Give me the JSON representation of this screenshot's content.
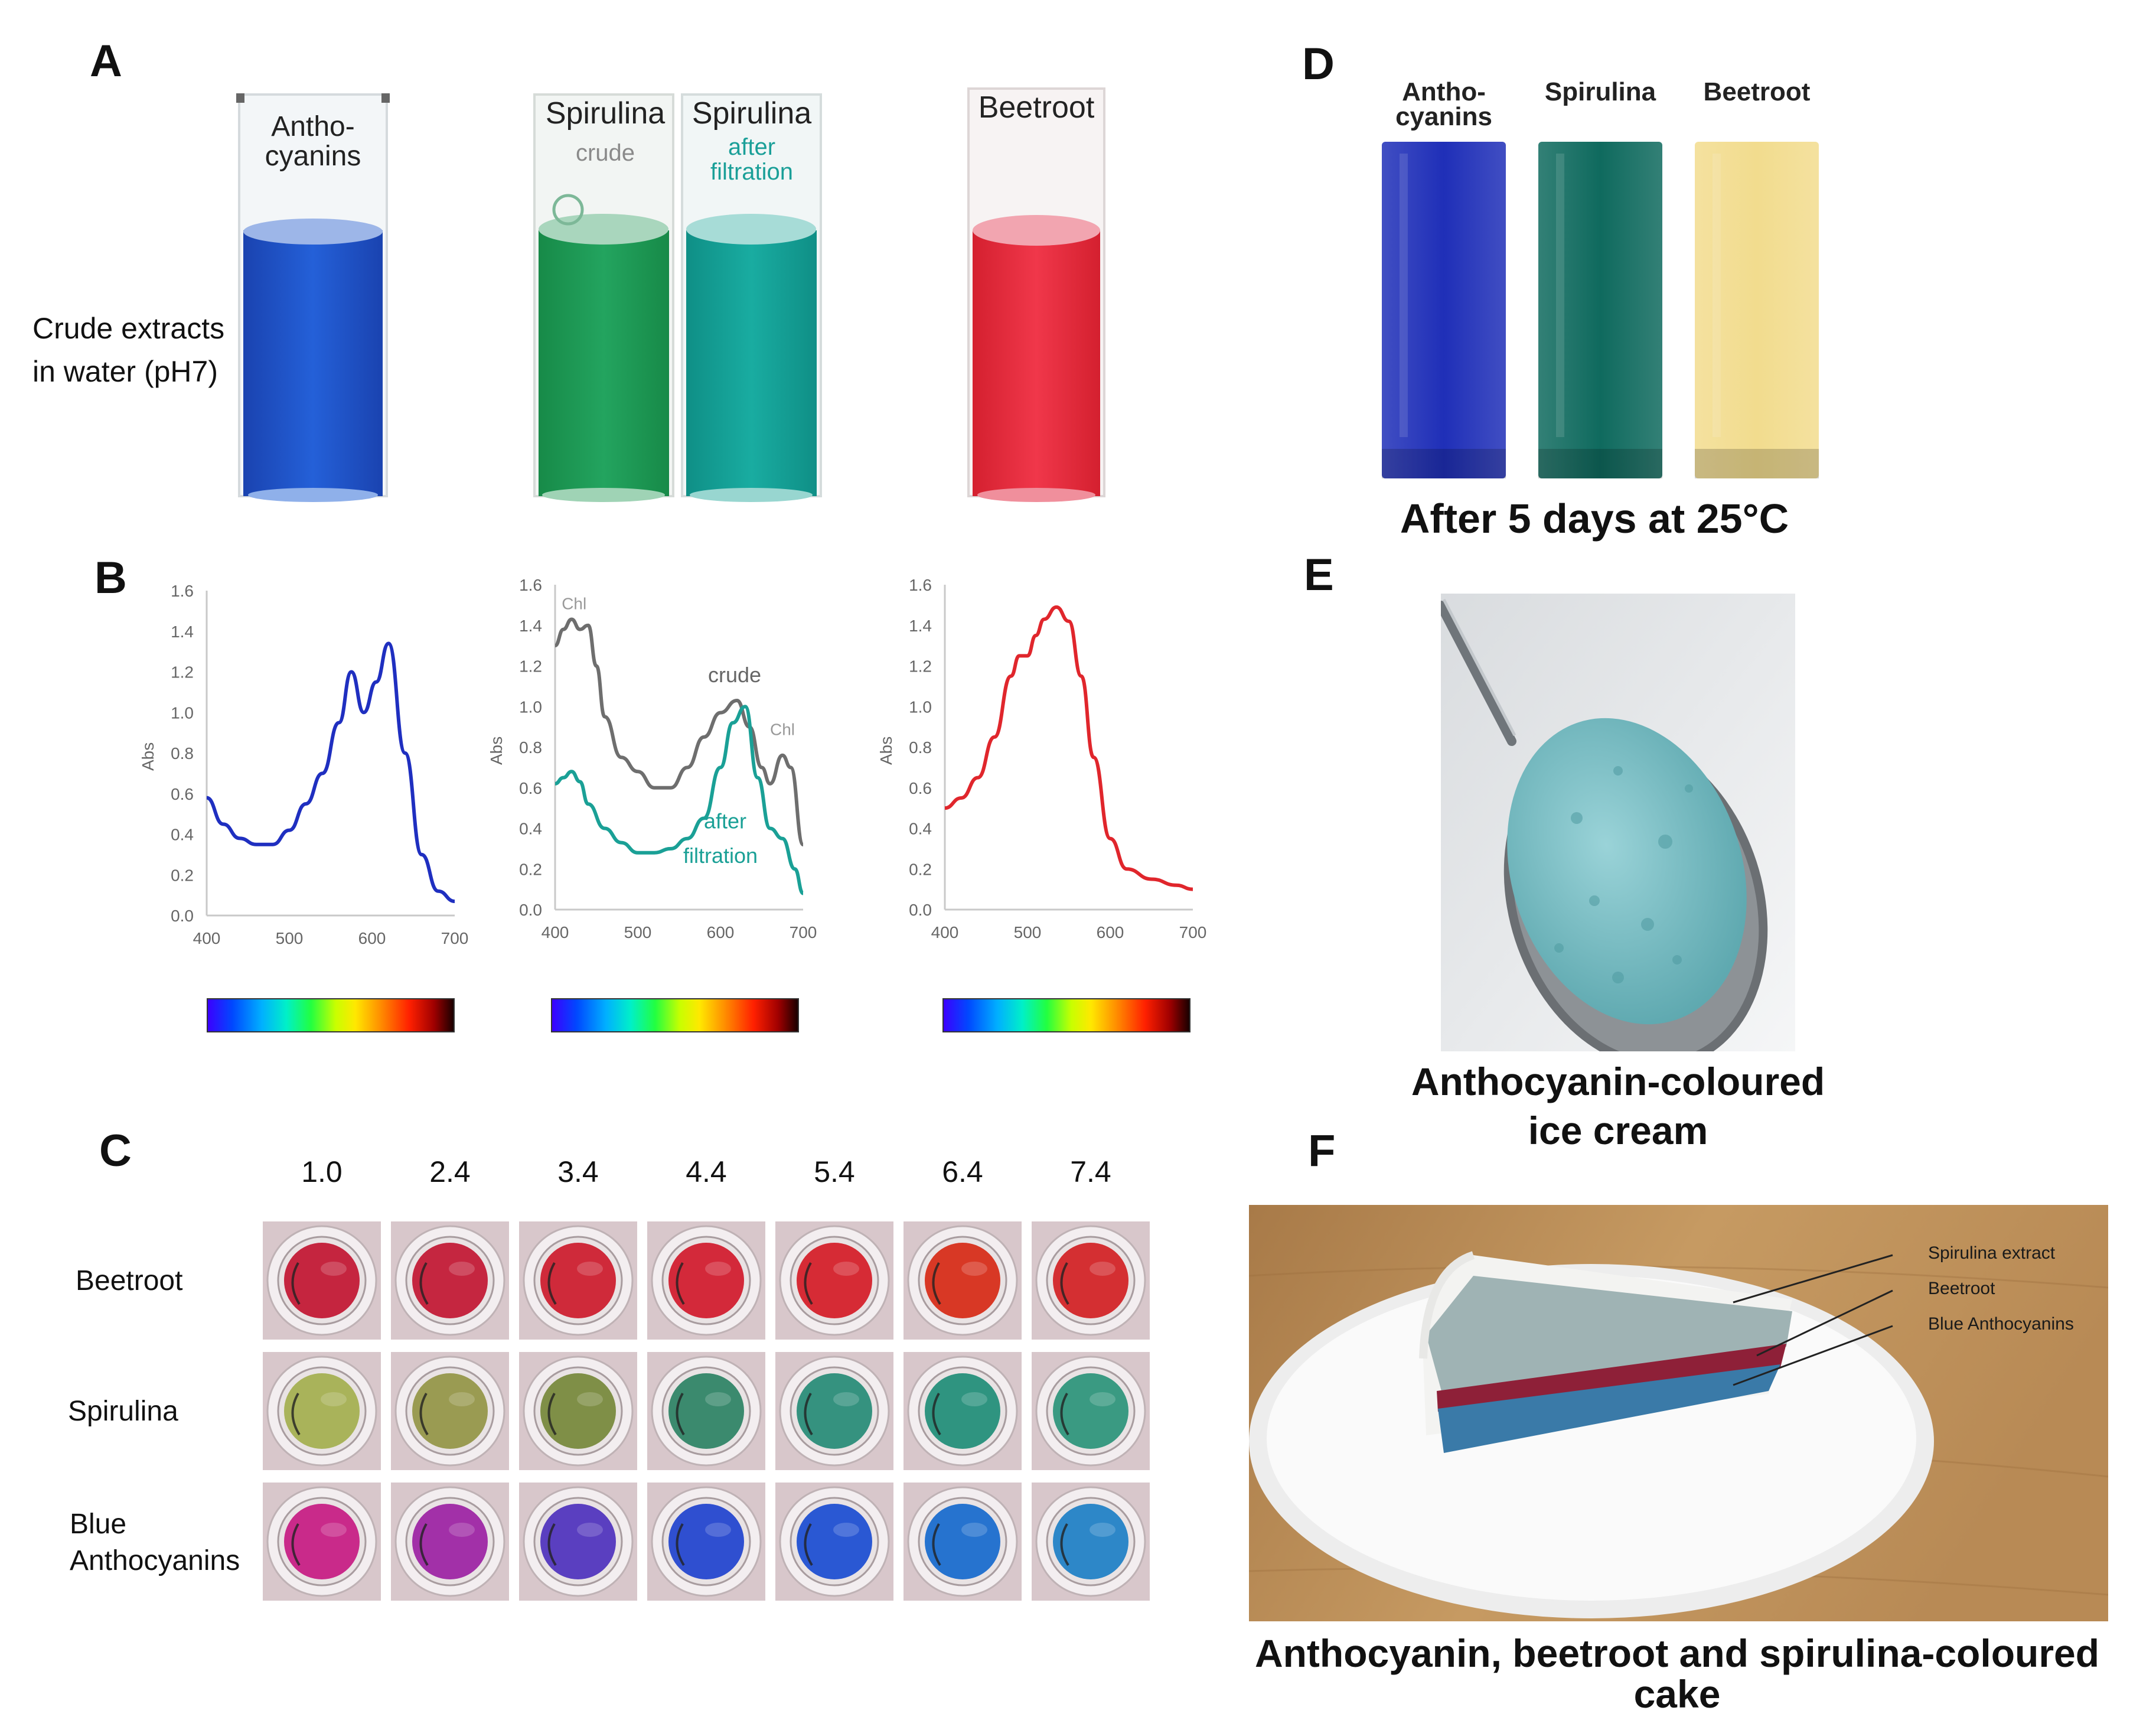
{
  "panels": {
    "A": {
      "label": "A",
      "side_text": [
        "Crude extracts",
        "in water (pH7)"
      ],
      "anthocyanins": [
        "Antho-",
        "cyanins"
      ],
      "spirulina_crude": {
        "title": "Spirulina",
        "sub": "crude"
      },
      "spirulina_filtered": {
        "title": "Spirulina",
        "sub": [
          "after",
          "filtration"
        ]
      },
      "beetroot": "Beetroot",
      "colors": {
        "anthocyanins": "#1d4fc8",
        "spirulina_crude": "#1e9a55",
        "spirulina_filtered": "#13a49a",
        "beetroot": "#e8283d"
      }
    },
    "B": {
      "label": "B",
      "ylabel": "Abs",
      "yticks": [
        "1.6",
        "1.4",
        "1.2",
        "1.0",
        "0.8",
        "0.6",
        "0.4",
        "0.2",
        "0.0"
      ],
      "xticks": [
        "400",
        "500",
        "600",
        "700"
      ],
      "spirulina_annotations": {
        "chl_left": "Chl",
        "chl_right": "Chl",
        "crude": "crude",
        "after": [
          "after",
          "filtration"
        ]
      }
    },
    "C": {
      "label": "C",
      "ph_values": [
        "1.0",
        "2.4",
        "3.4",
        "4.4",
        "5.4",
        "6.4",
        "7.4"
      ],
      "rows": [
        {
          "label": [
            "Beetroot"
          ],
          "colors": [
            "#c5253f",
            "#c52640",
            "#cf2a3a",
            "#d3293a",
            "#d62b35",
            "#d83825",
            "#d42f32"
          ]
        },
        {
          "label": [
            "Spirulina"
          ],
          "colors": [
            "#a9b35a",
            "#9a9b52",
            "#7f8f47",
            "#3b8a6e",
            "#35927f",
            "#2f9480",
            "#3a9a82"
          ]
        },
        {
          "label": [
            "Blue",
            "Anthocyanins"
          ],
          "colors": [
            "#c92a8a",
            "#a230a8",
            "#5a3fc0",
            "#2f4fd0",
            "#2a58d3",
            "#2673cf",
            "#2d87c8"
          ]
        }
      ]
    },
    "D": {
      "label": "D",
      "bottles": [
        {
          "label": [
            "Antho-",
            "cyanins"
          ],
          "color": "#1f2fb8"
        },
        {
          "label": [
            "Spirulina"
          ],
          "color": "#0f6a5e"
        },
        {
          "label": [
            "Beetroot"
          ],
          "color": "#f2dc8e"
        }
      ],
      "caption": "After 5 days at 25°C"
    },
    "E": {
      "label": "E",
      "caption": [
        "Anthocyanin-coloured",
        "ice cream"
      ],
      "icecream_color": "#7cc3c9"
    },
    "F": {
      "label": "F",
      "annotations": [
        "Spirulina extract",
        "Beetroot",
        "Blue Anthocyanins"
      ],
      "caption": [
        "Anthocyanin, beetroot and spirulina-coloured",
        "cake"
      ],
      "layer_colors": {
        "spirulina": "#9fb3b4",
        "beetroot": "#8e2038",
        "anthocyanins": "#3a7aa8"
      }
    }
  },
  "chart_data": [
    {
      "type": "line",
      "title": "",
      "xlabel": "",
      "ylabel": "Abs",
      "xlim": [
        400,
        700
      ],
      "ylim": [
        0,
        1.6
      ],
      "series": [
        {
          "color": "#1f2fc0",
          "x": [
            400,
            420,
            440,
            460,
            480,
            500,
            520,
            540,
            560,
            575,
            590,
            605,
            620,
            640,
            660,
            680,
            700
          ],
          "y": [
            0.58,
            0.45,
            0.38,
            0.35,
            0.35,
            0.42,
            0.55,
            0.7,
            0.95,
            1.2,
            1.0,
            1.15,
            1.34,
            0.8,
            0.3,
            0.12,
            0.07
          ]
        }
      ]
    },
    {
      "type": "line",
      "title": "",
      "xlabel": "",
      "ylabel": "Abs",
      "xlim": [
        400,
        700
      ],
      "ylim": [
        0,
        1.6
      ],
      "series": [
        {
          "name": "crude",
          "color": "#6e6e6e",
          "x": [
            400,
            410,
            420,
            430,
            440,
            450,
            460,
            480,
            500,
            520,
            540,
            560,
            580,
            600,
            620,
            635,
            650,
            660,
            675,
            685,
            700
          ],
          "y": [
            1.3,
            1.38,
            1.43,
            1.38,
            1.4,
            1.2,
            0.95,
            0.75,
            0.68,
            0.6,
            0.6,
            0.7,
            0.85,
            0.97,
            1.03,
            0.9,
            0.7,
            0.62,
            0.76,
            0.7,
            0.32
          ]
        },
        {
          "name": "after filtration",
          "color": "#1aa096",
          "x": [
            400,
            410,
            420,
            430,
            440,
            460,
            480,
            500,
            520,
            540,
            560,
            580,
            600,
            615,
            630,
            645,
            660,
            675,
            690,
            700
          ],
          "y": [
            0.62,
            0.65,
            0.68,
            0.63,
            0.52,
            0.4,
            0.33,
            0.28,
            0.28,
            0.3,
            0.35,
            0.45,
            0.7,
            0.92,
            1.0,
            0.65,
            0.4,
            0.35,
            0.2,
            0.08
          ]
        }
      ]
    },
    {
      "type": "line",
      "title": "",
      "xlabel": "",
      "ylabel": "Abs",
      "xlim": [
        400,
        700
      ],
      "ylim": [
        0,
        1.6
      ],
      "series": [
        {
          "color": "#e0262c",
          "x": [
            400,
            420,
            440,
            460,
            480,
            490,
            500,
            510,
            520,
            535,
            550,
            565,
            580,
            600,
            620,
            650,
            680,
            700
          ],
          "y": [
            0.5,
            0.55,
            0.65,
            0.85,
            1.15,
            1.25,
            1.25,
            1.35,
            1.43,
            1.49,
            1.42,
            1.15,
            0.75,
            0.35,
            0.2,
            0.15,
            0.12,
            0.1
          ]
        }
      ]
    }
  ]
}
